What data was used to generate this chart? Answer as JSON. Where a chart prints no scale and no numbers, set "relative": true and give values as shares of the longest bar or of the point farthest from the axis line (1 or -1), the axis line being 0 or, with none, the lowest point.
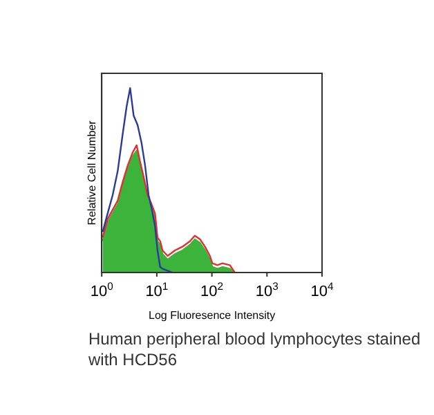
{
  "chart_data": {
    "type": "line",
    "xlabel": "Log Fluoresence Intensity",
    "ylabel": "Relative Cell Number",
    "relative": true,
    "log": "x",
    "xlim": [
      1,
      10000
    ],
    "xticks": [
      {
        "value": 1,
        "label": "10$^{0}$"
      },
      {
        "value": 10,
        "label": "10$^{1}$"
      },
      {
        "value": 100,
        "label": "10$^{2}$"
      },
      {
        "value": 1000,
        "label": "10$^{3}$"
      },
      {
        "value": 10000,
        "label": "10$^{4}$"
      }
    ],
    "tick_labels": "x",
    "grid": false,
    "legend": false,
    "marker": "none",
    "line_style": "solid",
    "series": [
      {
        "type": "area",
        "color": "#3cb43c",
        "x": [
          1.04,
          1.28,
          1.58,
          1.95,
          2.4,
          2.96,
          3.64,
          4.3,
          4.98,
          5.75,
          6.8,
          8.03,
          9.29,
          10.3,
          11.5,
          12.7,
          15.7,
          21.4,
          29.2,
          40,
          49,
          61,
          75,
          92,
          102,
          126,
          155,
          212,
          261
        ],
        "values": [
          0.17,
          0.27,
          0.32,
          0.37,
          0.47,
          0.56,
          0.63,
          0.66,
          0.58,
          0.5,
          0.4,
          0.35,
          0.3,
          0.17,
          0.15,
          0.1,
          0.07,
          0.1,
          0.12,
          0.15,
          0.18,
          0.16,
          0.12,
          0.07,
          0.03,
          0.02,
          0.03,
          0.02,
          0
        ]
      },
      {
        "type": "line",
        "color": "#e03030",
        "x": [
          1.04,
          1.28,
          1.58,
          1.95,
          2.4,
          2.96,
          3.64,
          4.3,
          4.98,
          5.75,
          6.8,
          8.03,
          9.29,
          10.3,
          11.5,
          12.7,
          15.7,
          21.4,
          29.2,
          40,
          49,
          61,
          75,
          92,
          102,
          126,
          155,
          212,
          261
        ],
        "values": [
          0.19,
          0.29,
          0.34,
          0.39,
          0.49,
          0.58,
          0.65,
          0.69,
          0.6,
          0.52,
          0.42,
          0.37,
          0.32,
          0.19,
          0.17,
          0.12,
          0.09,
          0.12,
          0.14,
          0.17,
          0.2,
          0.18,
          0.14,
          0.09,
          0.05,
          0.04,
          0.05,
          0.04,
          0
        ]
      },
      {
        "type": "line",
        "color": "#2a3a9a",
        "x": [
          1.04,
          1.28,
          1.58,
          1.95,
          2.4,
          2.83,
          3.28,
          3.8,
          4.48,
          5.3,
          6.13,
          7.09,
          8.03,
          9.29,
          10.3,
          11.5,
          12.7,
          15.7,
          19.3
        ],
        "values": [
          0.22,
          0.32,
          0.42,
          0.55,
          0.75,
          0.9,
          1,
          0.85,
          0.8,
          0.7,
          0.58,
          0.42,
          0.35,
          0.25,
          0.12,
          0.03,
          0.02,
          0.01,
          0
        ]
      }
    ],
    "annotations": [
      "Human peripheral blood lymphocytes stained with HCD56"
    ]
  }
}
